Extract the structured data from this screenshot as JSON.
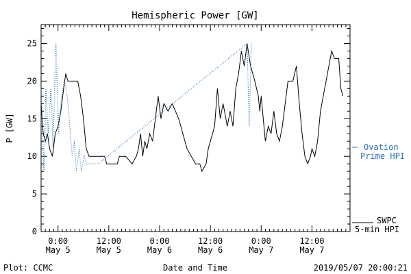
{
  "footer": {
    "plot_credit": "Plot: CCMC",
    "timestamp": "2019/05/07 20:00:21"
  },
  "colors": {
    "swpc": "#000000",
    "ovation": "#2a6fbf",
    "axis": "#000000"
  },
  "chart_data": {
    "type": "line",
    "title": "Hemispheric Power [GW]",
    "xlabel": "Date and Time",
    "ylabel": "P [GW]",
    "ylim": [
      0,
      27.5
    ],
    "xlim": [
      "2019-05-04T20:00",
      "2019-05-07T21:00"
    ],
    "yticks": [
      0,
      5,
      10,
      15,
      20,
      25
    ],
    "xticks": [
      {
        "t": "2019-05-05T00:00",
        "line1": "0:00",
        "line2": "May 5"
      },
      {
        "t": "2019-05-05T12:00",
        "line1": "12:00",
        "line2": "May 5"
      },
      {
        "t": "2019-05-06T00:00",
        "line1": "0:00",
        "line2": "May 6"
      },
      {
        "t": "2019-05-06T12:00",
        "line1": "12:00",
        "line2": "May 6"
      },
      {
        "t": "2019-05-07T00:00",
        "line1": "0:00",
        "line2": "May 7"
      },
      {
        "t": "2019-05-07T12:00",
        "line1": "12:00",
        "line2": "May 7"
      }
    ],
    "legend_position": "right",
    "series": [
      {
        "name": "SWPC 5-min HPI",
        "legend_line1": "SWPC",
        "legend_line2": "5-min HPI",
        "style": "solid",
        "points": [
          [
            "2019-05-04T20:00",
            17
          ],
          [
            "2019-05-04T20:30",
            13
          ],
          [
            "2019-05-04T21:00",
            12
          ],
          [
            "2019-05-04T21:30",
            13
          ],
          [
            "2019-05-04T22:00",
            11
          ],
          [
            "2019-05-04T22:40",
            10
          ],
          [
            "2019-05-04T23:20",
            13
          ],
          [
            "2019-05-05T00:00",
            14
          ],
          [
            "2019-05-05T00:40",
            16
          ],
          [
            "2019-05-05T01:20",
            19
          ],
          [
            "2019-05-05T01:50",
            21
          ],
          [
            "2019-05-05T02:20",
            20
          ],
          [
            "2019-05-05T04:40",
            20
          ],
          [
            "2019-05-05T05:20",
            18
          ],
          [
            "2019-05-05T06:00",
            15
          ],
          [
            "2019-05-05T06:40",
            11
          ],
          [
            "2019-05-05T07:20",
            10
          ],
          [
            "2019-05-05T11:00",
            10
          ],
          [
            "2019-05-05T11:30",
            9
          ],
          [
            "2019-05-05T14:00",
            9
          ],
          [
            "2019-05-05T14:30",
            10
          ],
          [
            "2019-05-05T16:00",
            10
          ],
          [
            "2019-05-05T17:30",
            9
          ],
          [
            "2019-05-05T18:30",
            10
          ],
          [
            "2019-05-05T19:00",
            11
          ],
          [
            "2019-05-05T19:30",
            13
          ],
          [
            "2019-05-05T20:00",
            10
          ],
          [
            "2019-05-05T20:30",
            12
          ],
          [
            "2019-05-05T21:00",
            11
          ],
          [
            "2019-05-05T21:40",
            13
          ],
          [
            "2019-05-05T22:20",
            12
          ],
          [
            "2019-05-05T23:00",
            15
          ],
          [
            "2019-05-05T23:40",
            18
          ],
          [
            "2019-05-06T00:20",
            15
          ],
          [
            "2019-05-06T01:00",
            17
          ],
          [
            "2019-05-06T02:00",
            16
          ],
          [
            "2019-05-06T03:00",
            17
          ],
          [
            "2019-05-06T04:30",
            15
          ],
          [
            "2019-05-06T05:30",
            13
          ],
          [
            "2019-05-06T06:30",
            11
          ],
          [
            "2019-05-06T07:30",
            10
          ],
          [
            "2019-05-06T08:30",
            9
          ],
          [
            "2019-05-06T09:30",
            9
          ],
          [
            "2019-05-06T10:00",
            8
          ],
          [
            "2019-05-06T11:00",
            9
          ],
          [
            "2019-05-06T11:30",
            11
          ],
          [
            "2019-05-06T12:00",
            12
          ],
          [
            "2019-05-06T13:00",
            14
          ],
          [
            "2019-05-06T13:40",
            19
          ],
          [
            "2019-05-06T14:20",
            15
          ],
          [
            "2019-05-06T15:00",
            17
          ],
          [
            "2019-05-06T16:00",
            14
          ],
          [
            "2019-05-06T16:40",
            16
          ],
          [
            "2019-05-06T17:20",
            14
          ],
          [
            "2019-05-06T18:00",
            19
          ],
          [
            "2019-05-06T18:40",
            21
          ],
          [
            "2019-05-06T19:20",
            24
          ],
          [
            "2019-05-06T20:00",
            22
          ],
          [
            "2019-05-06T20:40",
            25
          ],
          [
            "2019-05-06T21:30",
            22
          ],
          [
            "2019-05-06T22:30",
            20
          ],
          [
            "2019-05-06T23:20",
            18
          ],
          [
            "2019-05-06T23:40",
            16
          ],
          [
            "2019-05-07T00:00",
            18
          ],
          [
            "2019-05-07T00:30",
            15
          ],
          [
            "2019-05-07T01:00",
            12
          ],
          [
            "2019-05-07T01:40",
            14
          ],
          [
            "2019-05-07T02:20",
            13
          ],
          [
            "2019-05-07T03:00",
            16
          ],
          [
            "2019-05-07T03:40",
            13
          ],
          [
            "2019-05-07T04:20",
            12
          ],
          [
            "2019-05-07T05:00",
            14
          ],
          [
            "2019-05-07T05:40",
            17
          ],
          [
            "2019-05-07T06:20",
            20
          ],
          [
            "2019-05-07T07:30",
            20
          ],
          [
            "2019-05-07T08:20",
            22
          ],
          [
            "2019-05-07T09:00",
            17
          ],
          [
            "2019-05-07T09:40",
            13
          ],
          [
            "2019-05-07T10:20",
            10
          ],
          [
            "2019-05-07T11:00",
            9
          ],
          [
            "2019-05-07T11:40",
            10
          ],
          [
            "2019-05-07T12:00",
            11
          ],
          [
            "2019-05-07T12:40",
            10
          ],
          [
            "2019-05-07T13:20",
            12
          ],
          [
            "2019-05-07T14:00",
            16
          ],
          [
            "2019-05-07T14:40",
            18
          ],
          [
            "2019-05-07T15:20",
            20
          ],
          [
            "2019-05-07T16:00",
            22
          ],
          [
            "2019-05-07T16:40",
            24
          ],
          [
            "2019-05-07T17:20",
            23
          ],
          [
            "2019-05-07T18:20",
            23
          ],
          [
            "2019-05-07T18:50",
            19
          ],
          [
            "2019-05-07T19:20",
            18
          ]
        ]
      },
      {
        "name": "Ovation Prime HPI",
        "legend_line1": "Ovation",
        "legend_line2": "Prime HPI",
        "style": "dotted",
        "points": [
          [
            "2019-05-04T20:00",
            19
          ],
          [
            "2019-05-04T20:40",
            8
          ],
          [
            "2019-05-04T21:10",
            19
          ],
          [
            "2019-05-04T21:40",
            13
          ],
          [
            "2019-05-04T22:20",
            19
          ],
          [
            "2019-05-04T22:50",
            11
          ],
          [
            "2019-05-04T23:30",
            25
          ],
          [
            "2019-05-05T00:10",
            13
          ],
          [
            "2019-05-05T00:50",
            18
          ],
          [
            "2019-05-05T01:30",
            20
          ],
          [
            "2019-05-05T02:10",
            18
          ],
          [
            "2019-05-05T02:40",
            15
          ],
          [
            "2019-05-05T03:20",
            10
          ],
          [
            "2019-05-05T03:50",
            12
          ],
          [
            "2019-05-05T04:20",
            8
          ],
          [
            "2019-05-05T05:00",
            11
          ],
          [
            "2019-05-05T05:30",
            8
          ],
          [
            "2019-05-05T06:10",
            10
          ],
          [
            "2019-05-05T06:50",
            9
          ],
          [
            "2019-05-05T08:00",
            9
          ],
          [
            "2019-05-05T09:30",
            9
          ],
          [
            "2019-05-06T20:40",
            25
          ],
          [
            "2019-05-06T21:10",
            14
          ],
          [
            "2019-05-06T21:40",
            25
          ]
        ]
      }
    ]
  }
}
